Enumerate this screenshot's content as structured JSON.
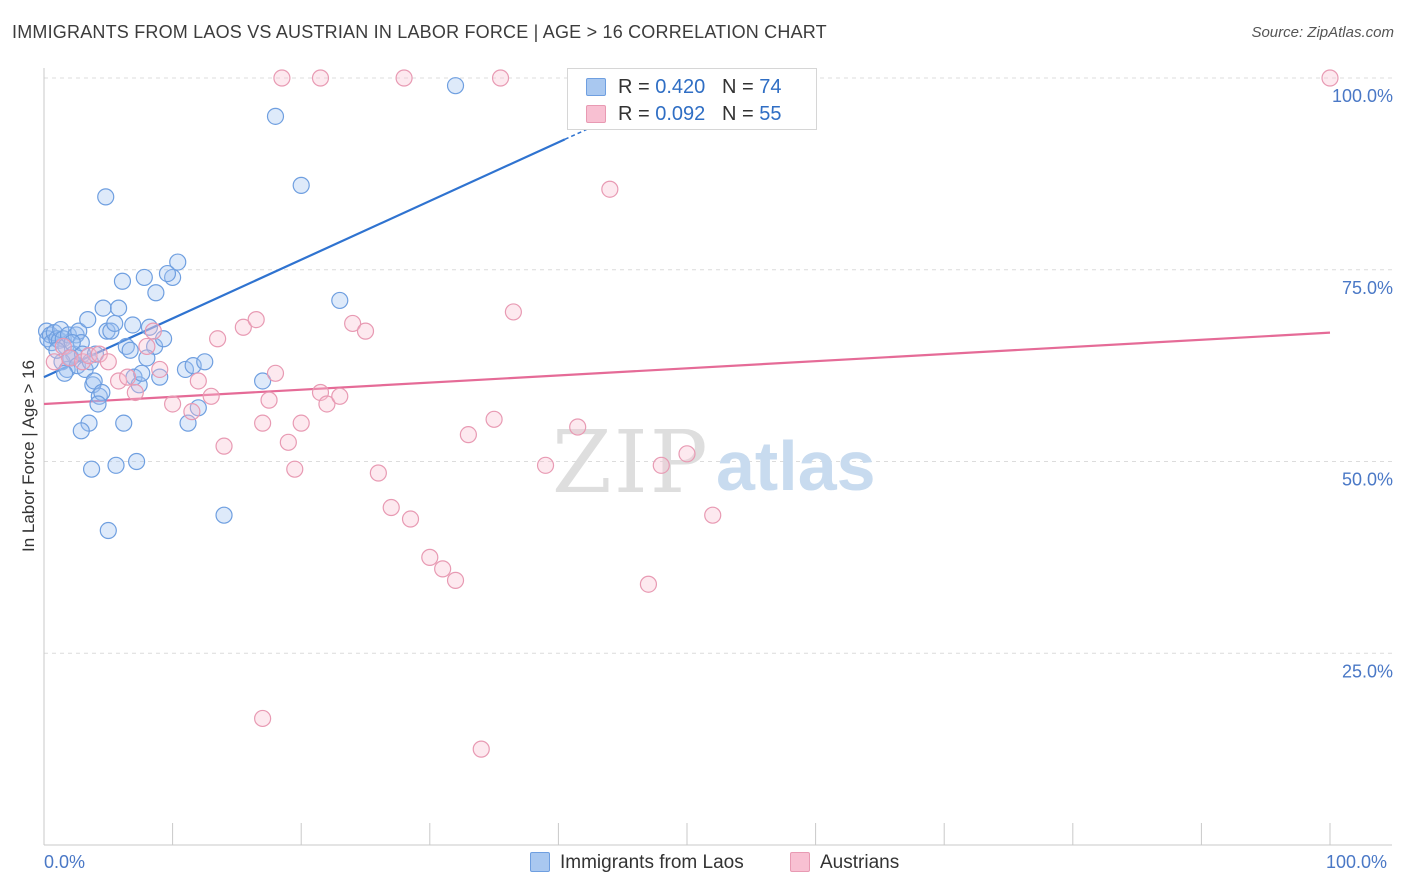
{
  "header": {
    "title": "IMMIGRANTS FROM LAOS VS AUSTRIAN IN LABOR FORCE | AGE > 16 CORRELATION CHART",
    "source": "Source: ZipAtlas.com"
  },
  "legend": {
    "rows": [
      {
        "r_label": "R = ",
        "r_value": "0.420",
        "n_label": "N = ",
        "n_value": "74",
        "color": "#a9c8f0",
        "border": "#6f9fe0"
      },
      {
        "r_label": "R = ",
        "r_value": "0.092",
        "n_label": "N = ",
        "n_value": "55",
        "color": "#f8c0d2",
        "border": "#e89ab3"
      }
    ]
  },
  "bottom_legend": [
    "Immigrants from Laos",
    "Austrians"
  ],
  "watermark": {
    "zip": "ZIP",
    "atlas": "atlas"
  },
  "x_axis_labels": {
    "min": "0.0%",
    "max": "100.0%"
  },
  "chart_data": {
    "type": "scatter",
    "ylabel": "In Labor Force | Age > 16",
    "xlim": [
      0,
      100
    ],
    "ylim": [
      0,
      100
    ],
    "y_ticks": [
      {
        "value": 25,
        "label": "25.0%"
      },
      {
        "value": 50,
        "label": "50.0%"
      },
      {
        "value": 75,
        "label": "75.0%"
      },
      {
        "value": 100,
        "label": "100.0%"
      }
    ],
    "grid": true,
    "series": [
      {
        "name": "Immigrants from Laos",
        "color": "#6f9fe0",
        "fill": "rgba(160,196,240,0.35)",
        "trend": {
          "x0": 0,
          "y0": 61.0,
          "x1": 40.5,
          "y1": 92.0,
          "dash_to_x": 43.5,
          "color": "#2f73d0"
        },
        "points": [
          [
            0.2,
            67
          ],
          [
            0.3,
            66
          ],
          [
            0.5,
            66.5
          ],
          [
            0.6,
            65.5
          ],
          [
            0.8,
            66.8
          ],
          [
            1.0,
            66
          ],
          [
            1.2,
            65.8
          ],
          [
            1.3,
            67.2
          ],
          [
            1.5,
            66
          ],
          [
            1.7,
            65
          ],
          [
            1.9,
            66.5
          ],
          [
            2.1,
            63.5
          ],
          [
            2.3,
            64
          ],
          [
            2.5,
            66.5
          ],
          [
            2.7,
            67
          ],
          [
            2.9,
            65.5
          ],
          [
            1.4,
            63
          ],
          [
            1.8,
            62
          ],
          [
            2.0,
            63.5
          ],
          [
            2.6,
            62.5
          ],
          [
            3.0,
            64
          ],
          [
            3.2,
            62
          ],
          [
            3.4,
            68.5
          ],
          [
            3.6,
            63
          ],
          [
            3.8,
            60
          ],
          [
            4.0,
            64
          ],
          [
            4.3,
            58.5
          ],
          [
            4.6,
            70
          ],
          [
            4.9,
            67
          ],
          [
            5.2,
            67
          ],
          [
            5.5,
            68
          ],
          [
            5.8,
            70
          ],
          [
            6.1,
            73.5
          ],
          [
            6.4,
            65
          ],
          [
            6.7,
            64.5
          ],
          [
            7.0,
            61
          ],
          [
            7.4,
            60
          ],
          [
            7.8,
            74
          ],
          [
            8.2,
            67.5
          ],
          [
            8.6,
            65
          ],
          [
            9.0,
            61
          ],
          [
            9.3,
            66
          ],
          [
            10.0,
            74
          ],
          [
            10.4,
            76
          ],
          [
            11.0,
            62
          ],
          [
            11.6,
            62.5
          ],
          [
            12.5,
            63
          ],
          [
            3.9,
            60.5
          ],
          [
            4.5,
            59
          ],
          [
            4.2,
            57.5
          ],
          [
            3.5,
            55
          ],
          [
            2.9,
            54
          ],
          [
            3.7,
            49
          ],
          [
            5.6,
            49.5
          ],
          [
            6.2,
            55
          ],
          [
            7.2,
            50
          ],
          [
            5.0,
            41
          ],
          [
            4.8,
            84.5
          ],
          [
            7.6,
            61.5
          ],
          [
            8.7,
            72
          ],
          [
            9.6,
            74.5
          ],
          [
            11.2,
            55
          ],
          [
            12.0,
            57
          ],
          [
            14.0,
            43
          ],
          [
            17.0,
            60.5
          ],
          [
            18.0,
            95
          ],
          [
            20.0,
            86
          ],
          [
            23.0,
            71
          ],
          [
            32.0,
            99
          ],
          [
            1.0,
            64.5
          ],
          [
            1.6,
            61.5
          ],
          [
            2.2,
            65.5
          ],
          [
            6.9,
            67.8
          ],
          [
            8.0,
            63.5
          ]
        ]
      },
      {
        "name": "Austrians",
        "color": "#e89ab3",
        "fill": "rgba(248,192,210,0.35)",
        "trend": {
          "x0": 0,
          "y0": 57.5,
          "x1": 100,
          "y1": 66.8,
          "color": "#e56b97"
        },
        "points": [
          [
            0.8,
            63
          ],
          [
            1.5,
            65
          ],
          [
            2.0,
            63.5
          ],
          [
            3.0,
            63
          ],
          [
            3.5,
            63.8
          ],
          [
            4.3,
            64
          ],
          [
            5.0,
            63
          ],
          [
            5.8,
            60.5
          ],
          [
            6.5,
            61
          ],
          [
            7.1,
            59
          ],
          [
            8.0,
            65
          ],
          [
            8.5,
            67
          ],
          [
            9.0,
            62
          ],
          [
            10.0,
            57.5
          ],
          [
            11.5,
            56.5
          ],
          [
            12.0,
            60.5
          ],
          [
            13.0,
            58.5
          ],
          [
            13.5,
            66
          ],
          [
            14.0,
            52
          ],
          [
            15.5,
            67.5
          ],
          [
            16.5,
            68.5
          ],
          [
            17.0,
            55
          ],
          [
            17.5,
            58
          ],
          [
            18.0,
            61.5
          ],
          [
            19.0,
            52.5
          ],
          [
            19.5,
            49
          ],
          [
            20.0,
            55
          ],
          [
            21.5,
            59
          ],
          [
            22.0,
            57.5
          ],
          [
            23.0,
            58.5
          ],
          [
            24.0,
            68
          ],
          [
            25.0,
            67
          ],
          [
            26.0,
            48.5
          ],
          [
            27.0,
            44
          ],
          [
            28.5,
            42.5
          ],
          [
            30.0,
            37.5
          ],
          [
            31.0,
            36
          ],
          [
            32.0,
            34.5
          ],
          [
            33.0,
            53.5
          ],
          [
            35.0,
            55.5
          ],
          [
            36.5,
            69.5
          ],
          [
            39.0,
            49.5
          ],
          [
            41.5,
            54.5
          ],
          [
            44.0,
            85.5
          ],
          [
            47.0,
            34
          ],
          [
            48.0,
            49.5
          ],
          [
            50.0,
            51
          ],
          [
            52.0,
            43
          ],
          [
            18.5,
            100
          ],
          [
            21.5,
            100
          ],
          [
            28.0,
            100
          ],
          [
            35.5,
            100
          ],
          [
            100.0,
            100
          ],
          [
            17.0,
            16.5
          ],
          [
            34.0,
            12.5
          ]
        ]
      }
    ]
  }
}
